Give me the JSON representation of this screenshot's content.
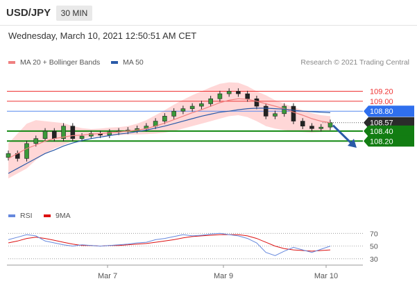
{
  "header": {
    "pair": "USD/JPY",
    "timeframe": "30 MIN",
    "datetime": "Wednesday, March 10, 2021 12:50:51 AM CET"
  },
  "legend": {
    "ma20": "MA 20 + Bollinger Bands",
    "ma50": "MA 50",
    "credit": "Research © 2021 Trading Central",
    "rsi": "RSI",
    "rsi_ma": "9MA"
  },
  "colors": {
    "ma20": "#f08080",
    "ma50": "#2a5aa8",
    "bollinger_fill": "#ffd0d0",
    "resistance": "#ee3333",
    "pivot": "#5588ee",
    "support": "#118811",
    "arrow": "#2a5aa8",
    "rsi": "#6688dd",
    "rsi_ma": "#dd1111"
  },
  "chart_data": [
    {
      "type": "candlestick",
      "ylim": [
        107.2,
        109.5
      ],
      "xlabels": [
        "Mar 7",
        "Mar 9",
        "Mar 10"
      ],
      "levels": [
        {
          "value": 109.2,
          "label": "109.20",
          "kind": "resistance"
        },
        {
          "value": 109.0,
          "label": "109.00",
          "kind": "resistance"
        },
        {
          "value": 108.8,
          "label": "108.80",
          "kind": "pivot"
        },
        {
          "value": 108.57,
          "label": "108.57",
          "kind": "last"
        },
        {
          "value": 108.4,
          "label": "108.40",
          "kind": "support"
        },
        {
          "value": 108.2,
          "label": "108.20",
          "kind": "support"
        }
      ],
      "close": [
        107.95,
        107.85,
        108.15,
        108.25,
        108.4,
        108.25,
        108.5,
        108.25,
        108.3,
        108.35,
        108.32,
        108.38,
        108.4,
        108.42,
        108.45,
        108.5,
        108.6,
        108.7,
        108.8,
        108.85,
        108.9,
        108.95,
        109.05,
        109.15,
        109.2,
        109.15,
        109.05,
        108.9,
        108.7,
        108.75,
        108.9,
        108.6,
        108.5,
        108.45,
        108.48,
        108.57
      ],
      "ma20": [
        107.85,
        107.95,
        108.05,
        108.12,
        108.2,
        108.25,
        108.28,
        108.31,
        108.32,
        108.34,
        108.35,
        108.37,
        108.38,
        108.4,
        108.42,
        108.45,
        108.5,
        108.56,
        108.63,
        108.7,
        108.77,
        108.83,
        108.9,
        108.97,
        109.02,
        109.05,
        109.04,
        109.0,
        108.95,
        108.9,
        108.85,
        108.78,
        108.72,
        108.65,
        108.6,
        108.57
      ],
      "ma50": [
        107.55,
        107.65,
        107.75,
        107.85,
        107.95,
        108.02,
        108.1,
        108.16,
        108.21,
        108.25,
        108.28,
        108.31,
        108.34,
        108.36,
        108.39,
        108.42,
        108.46,
        108.5,
        108.55,
        108.6,
        108.65,
        108.7,
        108.74,
        108.78,
        108.8,
        108.83,
        108.85,
        108.86,
        108.86,
        108.85,
        108.84,
        108.82,
        108.8,
        108.79,
        108.78,
        108.77
      ],
      "bb_upper": [
        108.15,
        108.35,
        108.55,
        108.62,
        108.6,
        108.58,
        108.56,
        108.5,
        108.46,
        108.44,
        108.45,
        108.47,
        108.48,
        108.5,
        108.55,
        108.62,
        108.72,
        108.82,
        108.93,
        109.03,
        109.12,
        109.2,
        109.28,
        109.35,
        109.38,
        109.37,
        109.3,
        109.2,
        109.12,
        109.02,
        108.95,
        108.88,
        108.82,
        108.76,
        108.72,
        108.7
      ],
      "bb_lower": [
        107.45,
        107.55,
        107.65,
        107.82,
        107.95,
        108.05,
        108.12,
        108.2,
        108.24,
        108.28,
        108.3,
        108.31,
        108.32,
        108.33,
        108.33,
        108.34,
        108.35,
        108.37,
        108.4,
        108.45,
        108.5,
        108.55,
        108.6,
        108.65,
        108.7,
        108.72,
        108.68,
        108.6,
        108.5,
        108.45,
        108.42,
        108.4,
        108.38,
        108.37,
        108.38,
        108.4
      ]
    },
    {
      "type": "line",
      "name": "RSI",
      "yticks": [
        70,
        50,
        30
      ],
      "rsi": [
        60,
        64,
        68,
        66,
        58,
        55,
        52,
        50,
        52,
        51,
        50,
        51,
        52,
        53,
        55,
        56,
        60,
        62,
        65,
        68,
        66,
        67,
        69,
        70,
        68,
        66,
        62,
        55,
        40,
        35,
        42,
        48,
        44,
        40,
        45,
        50
      ],
      "rsi_ma": [
        55,
        58,
        62,
        64,
        62,
        59,
        56,
        53,
        51,
        51,
        50,
        51,
        51,
        52,
        53,
        54,
        56,
        58,
        60,
        63,
        65,
        66,
        67,
        68,
        68,
        68,
        66,
        62,
        56,
        50,
        46,
        44,
        43,
        42,
        43,
        44
      ]
    }
  ]
}
